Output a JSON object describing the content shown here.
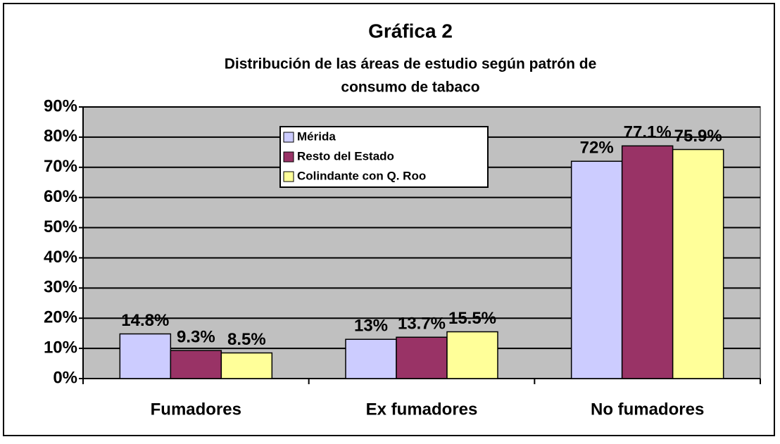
{
  "chart_data": {
    "type": "bar",
    "title": "Gráfica 2",
    "subtitle": [
      "Distribución de las áreas de estudio según patrón de",
      "consumo de tabaco"
    ],
    "categories": [
      "Fumadores",
      "Ex fumadores",
      "No fumadores"
    ],
    "series": [
      {
        "name": "Mérida",
        "color": "#ccccff",
        "values": [
          14.8,
          13,
          72
        ],
        "value_labels": [
          "14.8%",
          "13%",
          "72%"
        ]
      },
      {
        "name": "Resto del Estado",
        "color": "#993366",
        "values": [
          9.3,
          13.7,
          77.1
        ],
        "value_labels": [
          "9.3%",
          "13.7%",
          "77.1%"
        ]
      },
      {
        "name": "Colindante con Q. Roo",
        "color": "#ffff99",
        "values": [
          8.5,
          15.5,
          75.9
        ],
        "value_labels": [
          "8.5%",
          "15.5%",
          "75.9%"
        ]
      }
    ],
    "ylim": [
      0,
      90
    ],
    "yticks": [
      {
        "value": 0,
        "label": "0%"
      },
      {
        "value": 10,
        "label": "10%"
      },
      {
        "value": 20,
        "label": "20%"
      },
      {
        "value": 30,
        "label": "30%"
      },
      {
        "value": 40,
        "label": "40%"
      },
      {
        "value": 50,
        "label": "50%"
      },
      {
        "value": 60,
        "label": "60%"
      },
      {
        "value": 70,
        "label": "70%"
      },
      {
        "value": 80,
        "label": "80%"
      },
      {
        "value": 90,
        "label": "90%"
      }
    ],
    "grid": true,
    "plot_background": "#c0c0c0"
  }
}
